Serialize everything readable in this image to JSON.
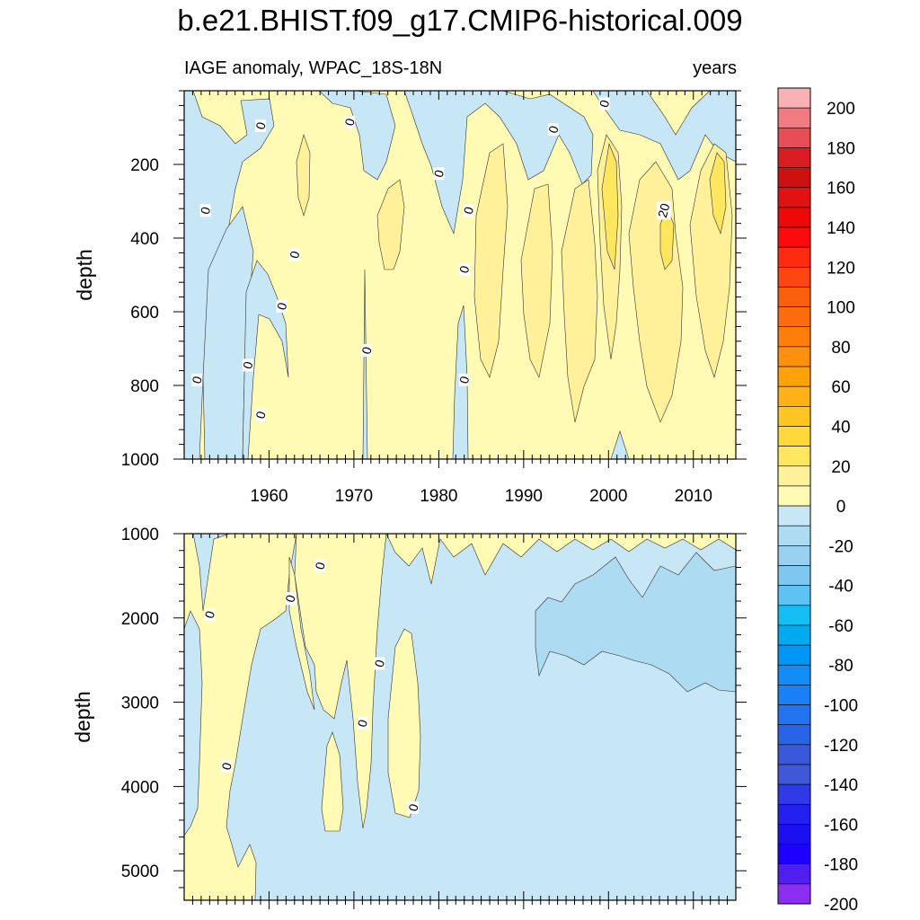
{
  "chart_data": {
    "type": "heatmap",
    "title": "b.e21.BHIST.f09_g17.CMIP6-historical.009",
    "left_string": "IAGE anomaly, WPAC_18S-18N",
    "right_string": "years",
    "xlim": [
      1950,
      2015
    ],
    "x_ticks": [
      1960,
      1970,
      1980,
      1990,
      2000,
      2010
    ],
    "colorbar": {
      "levels": [
        -200,
        -190,
        -180,
        -170,
        -160,
        -150,
        -140,
        -130,
        -120,
        -110,
        -100,
        -90,
        -80,
        -70,
        -60,
        -50,
        -40,
        -30,
        -20,
        -10,
        0,
        10,
        20,
        30,
        40,
        50,
        60,
        70,
        80,
        90,
        100,
        110,
        120,
        130,
        140,
        150,
        160,
        170,
        180,
        190,
        200
      ],
      "labels": [
        "200",
        "180",
        "160",
        "140",
        "120",
        "100",
        "80",
        "60",
        "40",
        "20",
        "0",
        "-20",
        "-40",
        "-60",
        "-80",
        "-100",
        "-120",
        "-140",
        "-160",
        "-180",
        "-200"
      ],
      "colors": [
        "#f9b2b4",
        "#f07b80",
        "#e64d54",
        "#d81e22",
        "#cf1010",
        "#e21212",
        "#ee0909",
        "#fb0b0b",
        "#ff2b10",
        "#ff4510",
        "#fa5f0c",
        "#fb6d0c",
        "#ff7d0b",
        "#ff900b",
        "#ffa209",
        "#ffb117",
        "#ffc622",
        "#ffd83a",
        "#ffe65f",
        "#fff19a",
        "#fffab4",
        "#c7e6f6",
        "#addbf1",
        "#98d1ef",
        "#7ec8ef",
        "#5ec3f3",
        "#13bef3",
        "#00aaef",
        "#0096f5",
        "#138cf5",
        "#1b7ff5",
        "#2173f0",
        "#2a64e6",
        "#3a58dc",
        "#4058d8",
        "#2f3ae6",
        "#2320f0",
        "#1c0ff2",
        "#1d00ff",
        "#4f1ff0",
        "#8c2ef0"
      ]
    },
    "panels": [
      {
        "name": "upper",
        "ylabel": "depth",
        "ylim": [
          0,
          1000
        ],
        "y_ticks": [
          200,
          400,
          600,
          800,
          1000
        ],
        "x_tick_labels_shown": true,
        "contour_labels": [
          {
            "text": "0",
            "year": 1959,
            "depth": 95
          },
          {
            "text": "0",
            "year": 1969.5,
            "depth": 85
          },
          {
            "text": "0",
            "year": 1993.5,
            "depth": 105
          },
          {
            "text": "0",
            "year": 1999.5,
            "depth": 35
          },
          {
            "text": "0",
            "year": 1980,
            "depth": 225
          },
          {
            "text": "0",
            "year": 1952.5,
            "depth": 325
          },
          {
            "text": "0",
            "year": 1983.5,
            "depth": 325
          },
          {
            "text": "20",
            "year": 2006.5,
            "depth": 325
          },
          {
            "text": "0",
            "year": 1963,
            "depth": 445
          },
          {
            "text": "0",
            "year": 1983,
            "depth": 485
          },
          {
            "text": "0",
            "year": 1961.5,
            "depth": 585
          },
          {
            "text": "0",
            "year": 1971.5,
            "depth": 705
          },
          {
            "text": "0",
            "year": 1957.5,
            "depth": 745
          },
          {
            "text": "0",
            "year": 1951.5,
            "depth": 785
          },
          {
            "text": "0",
            "year": 1983,
            "depth": 785
          },
          {
            "text": "0",
            "year": 1959,
            "depth": 880
          }
        ]
      },
      {
        "name": "lower",
        "ylabel": "depth",
        "ylim": [
          1000,
          5350
        ],
        "y_ticks": [
          1000,
          2000,
          3000,
          4000,
          5000
        ],
        "x_tick_labels_shown": false,
        "contour_labels": [
          {
            "text": "0",
            "year": 1966,
            "depth": 1380
          },
          {
            "text": "0",
            "year": 1962.5,
            "depth": 1770
          },
          {
            "text": "0",
            "year": 1953,
            "depth": 1960
          },
          {
            "text": "0",
            "year": 1973,
            "depth": 2540
          },
          {
            "text": "0",
            "year": 1971,
            "depth": 3250
          },
          {
            "text": "0",
            "year": 1955,
            "depth": 3760
          },
          {
            "text": "0",
            "year": 1977,
            "depth": 4250
          }
        ]
      }
    ]
  }
}
